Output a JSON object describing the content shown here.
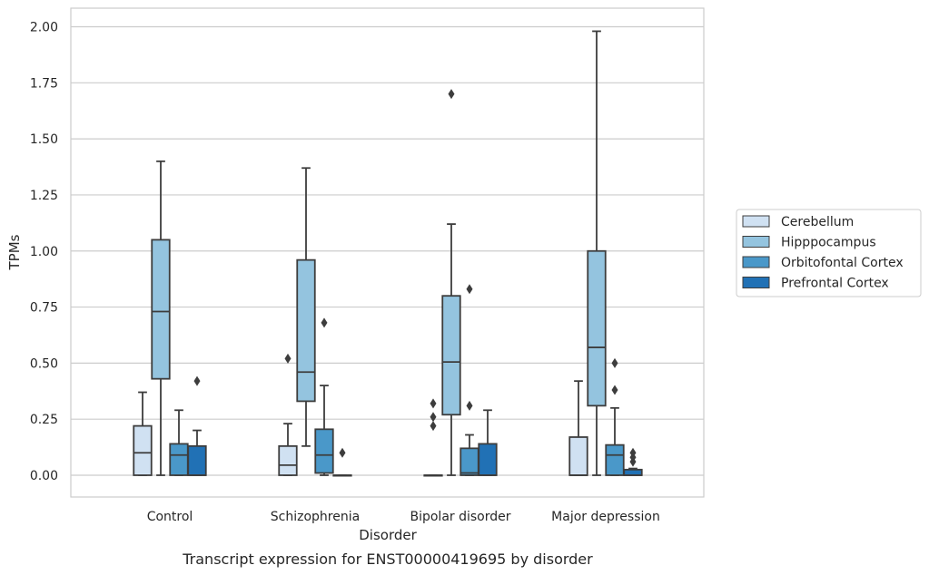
{
  "chart_data": {
    "type": "boxplot",
    "caption": "Transcript expression for ENST00000419695 by disorder",
    "xlabel": "Disorder",
    "ylabel": "TPMs",
    "ylim": [
      -0.1,
      2.08
    ],
    "yticks": [
      "0.00",
      "0.25",
      "0.50",
      "0.75",
      "1.00",
      "1.25",
      "1.50",
      "1.75",
      "2.00"
    ],
    "grid": true,
    "legend_position": "right",
    "categories": [
      "Control",
      "Schizophrenia",
      "Bipolar disorder",
      "Major depression"
    ],
    "series": [
      {
        "name": "Cerebellum",
        "color": "#d0e1f2",
        "boxes": [
          {
            "whislo": 0.0,
            "q1": 0.0,
            "med": 0.1,
            "q3": 0.22,
            "whishi": 0.37,
            "fliers": []
          },
          {
            "whislo": 0.0,
            "q1": 0.0,
            "med": 0.045,
            "q3": 0.13,
            "whishi": 0.23,
            "fliers": [
              0.52
            ]
          },
          {
            "whislo": 0.0,
            "q1": 0.0,
            "med": 0.0,
            "q3": 0.0,
            "whishi": 0.0,
            "fliers": [
              0.22,
              0.26,
              0.32
            ]
          },
          {
            "whislo": 0.0,
            "q1": 0.0,
            "med": 0.0,
            "q3": 0.17,
            "whishi": 0.42,
            "fliers": []
          }
        ]
      },
      {
        "name": "Hipppocampus",
        "color": "#94c4df",
        "boxes": [
          {
            "whislo": 0.0,
            "q1": 0.43,
            "med": 0.73,
            "q3": 1.05,
            "whishi": 1.4,
            "fliers": []
          },
          {
            "whislo": 0.13,
            "q1": 0.33,
            "med": 0.46,
            "q3": 0.96,
            "whishi": 1.37,
            "fliers": []
          },
          {
            "whislo": 0.0,
            "q1": 0.27,
            "med": 0.505,
            "q3": 0.8,
            "whishi": 1.12,
            "fliers": [
              1.7
            ]
          },
          {
            "whislo": 0.0,
            "q1": 0.31,
            "med": 0.57,
            "q3": 1.0,
            "whishi": 1.98,
            "fliers": []
          }
        ]
      },
      {
        "name": "Orbitofontal Cortex",
        "color": "#4a98c9",
        "boxes": [
          {
            "whislo": 0.0,
            "q1": 0.0,
            "med": 0.09,
            "q3": 0.14,
            "whishi": 0.29,
            "fliers": []
          },
          {
            "whislo": 0.0,
            "q1": 0.01,
            "med": 0.09,
            "q3": 0.205,
            "whishi": 0.4,
            "fliers": [
              0.68
            ]
          },
          {
            "whislo": 0.0,
            "q1": 0.0,
            "med": 0.01,
            "q3": 0.12,
            "whishi": 0.18,
            "fliers": [
              0.31,
              0.83
            ]
          },
          {
            "whislo": 0.0,
            "q1": 0.0,
            "med": 0.09,
            "q3": 0.135,
            "whishi": 0.3,
            "fliers": [
              0.38,
              0.5
            ]
          }
        ]
      },
      {
        "name": "Prefrontal Cortex",
        "color": "#2171b5",
        "boxes": [
          {
            "whislo": 0.0,
            "q1": 0.0,
            "med": 0.0,
            "q3": 0.13,
            "whishi": 0.2,
            "fliers": [
              0.42
            ]
          },
          {
            "whislo": 0.0,
            "q1": 0.0,
            "med": 0.0,
            "q3": 0.0,
            "whishi": 0.0,
            "fliers": [
              0.1
            ]
          },
          {
            "whislo": 0.0,
            "q1": 0.0,
            "med": 0.0,
            "q3": 0.14,
            "whishi": 0.29,
            "fliers": []
          },
          {
            "whislo": 0.0,
            "q1": 0.0,
            "med": 0.0,
            "q3": 0.025,
            "whishi": 0.03,
            "fliers": [
              0.06,
              0.08,
              0.1
            ]
          }
        ]
      }
    ]
  }
}
